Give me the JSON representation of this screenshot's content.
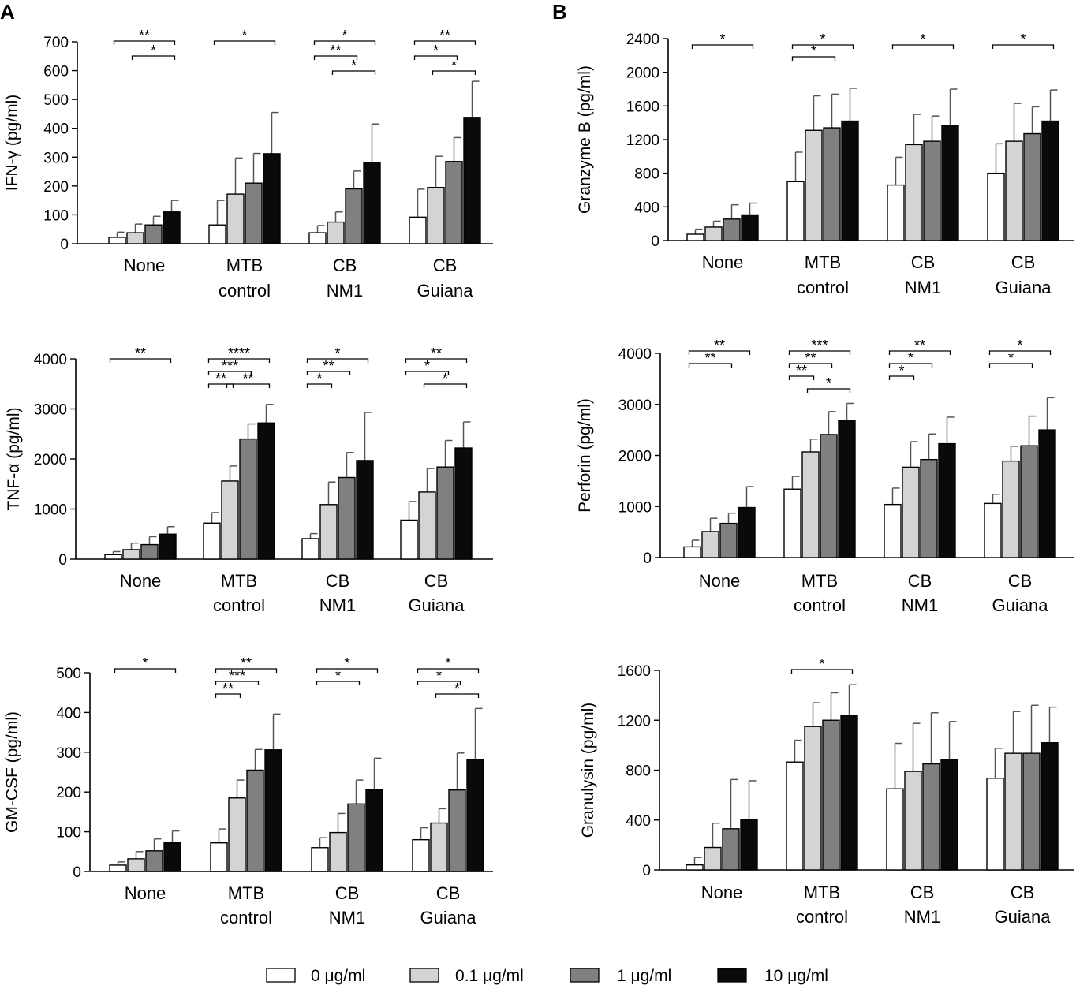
{
  "figure": {
    "panel_labels": [
      "A",
      "B"
    ],
    "legend": [
      {
        "label": "0 μg/ml",
        "color": "#ffffff"
      },
      {
        "label": "0.1 μg/ml",
        "color": "#d4d4d4"
      },
      {
        "label": "1 μg/ml",
        "color": "#808080"
      },
      {
        "label": "10 μg/ml",
        "color": "#0a0a0a"
      }
    ]
  },
  "chart_data": [
    {
      "type": "bar",
      "panel": "A",
      "ylabel": "IFN-γ (pg/ml)",
      "categories": [
        "None",
        "MTB\ncontrol",
        "CB\nNM1",
        "CB\nGuiana"
      ],
      "ylim": [
        0,
        700
      ],
      "yticks": [
        0,
        100,
        200,
        300,
        400,
        500,
        600,
        700
      ],
      "series": [
        {
          "name": "0 μg/ml",
          "values": [
            22,
            65,
            38,
            92
          ],
          "errors": [
            18,
            85,
            25,
            97
          ]
        },
        {
          "name": "0.1 μg/ml",
          "values": [
            38,
            172,
            75,
            195
          ],
          "errors": [
            30,
            125,
            35,
            108
          ]
        },
        {
          "name": "1 μg/ml",
          "values": [
            65,
            210,
            190,
            285
          ],
          "errors": [
            30,
            103,
            62,
            83
          ]
        },
        {
          "name": "10 μg/ml",
          "values": [
            110,
            312,
            282,
            438
          ],
          "errors": [
            40,
            143,
            133,
            125
          ]
        }
      ],
      "brackets": [
        {
          "group": 0,
          "from": 0,
          "to": 3,
          "level": 0,
          "label": "**"
        },
        {
          "group": 0,
          "from": 1,
          "to": 3,
          "level": 1,
          "label": "*"
        },
        {
          "group": 1,
          "from": 0,
          "to": 3,
          "level": 0,
          "label": "*"
        },
        {
          "group": 2,
          "from": 0,
          "to": 3,
          "level": 0,
          "label": "*"
        },
        {
          "group": 2,
          "from": 0,
          "to": 2,
          "level": 1,
          "label": "**"
        },
        {
          "group": 2,
          "from": 1,
          "to": 3,
          "level": 2,
          "label": "*"
        },
        {
          "group": 3,
          "from": 0,
          "to": 3,
          "level": 0,
          "label": "**"
        },
        {
          "group": 3,
          "from": 0,
          "to": 2,
          "level": 1,
          "label": "*"
        },
        {
          "group": 3,
          "from": 1,
          "to": 3,
          "level": 2,
          "label": "*"
        }
      ]
    },
    {
      "type": "bar",
      "panel": "A",
      "ylabel": "TNF-α (pg/ml)",
      "categories": [
        "None",
        "MTB\ncontrol",
        "CB\nNM1",
        "CB\nGuiana"
      ],
      "ylim": [
        0,
        4000
      ],
      "yticks": [
        0,
        1000,
        2000,
        3000,
        4000
      ],
      "series": [
        {
          "name": "0 μg/ml",
          "values": [
            90,
            720,
            410,
            780
          ],
          "errors": [
            60,
            210,
            100,
            370
          ]
        },
        {
          "name": "0.1 μg/ml",
          "values": [
            190,
            1560,
            1090,
            1340
          ],
          "errors": [
            130,
            300,
            450,
            470
          ]
        },
        {
          "name": "1 μg/ml",
          "values": [
            290,
            2400,
            1630,
            1840
          ],
          "errors": [
            160,
            300,
            500,
            530
          ]
        },
        {
          "name": "10 μg/ml",
          "values": [
            500,
            2720,
            1970,
            2220
          ],
          "errors": [
            150,
            370,
            960,
            520
          ]
        }
      ],
      "brackets": [
        {
          "group": 0,
          "from": 0,
          "to": 3,
          "level": 0,
          "label": "**"
        },
        {
          "group": 1,
          "from": 0,
          "to": 3,
          "level": 0,
          "label": "****"
        },
        {
          "group": 1,
          "from": 0,
          "to": 2,
          "level": 1,
          "label": "***"
        },
        {
          "group": 1,
          "from": 0,
          "to": 1,
          "level": 2,
          "label": "**"
        },
        {
          "group": 1,
          "from": 1,
          "to": 3,
          "level": 2,
          "label": "**"
        },
        {
          "group": 2,
          "from": 0,
          "to": 3,
          "level": 0,
          "label": "*"
        },
        {
          "group": 2,
          "from": 0,
          "to": 2,
          "level": 1,
          "label": "**"
        },
        {
          "group": 2,
          "from": 0,
          "to": 1,
          "level": 2,
          "label": "*"
        },
        {
          "group": 3,
          "from": 0,
          "to": 3,
          "level": 0,
          "label": "**"
        },
        {
          "group": 3,
          "from": 0,
          "to": 2,
          "level": 1,
          "label": "*"
        },
        {
          "group": 3,
          "from": 1,
          "to": 3,
          "level": 2,
          "label": "*"
        }
      ]
    },
    {
      "type": "bar",
      "panel": "A",
      "ylabel": "GM-CSF (pg/ml)",
      "categories": [
        "None",
        "MTB\ncontrol",
        "CB\nNM1",
        "CB\nGuiana"
      ],
      "ylim": [
        0,
        500
      ],
      "yticks": [
        0,
        100,
        200,
        300,
        400,
        500
      ],
      "series": [
        {
          "name": "0 μg/ml",
          "values": [
            16,
            72,
            60,
            80
          ],
          "errors": [
            8,
            35,
            25,
            30
          ]
        },
        {
          "name": "0.1 μg/ml",
          "values": [
            32,
            185,
            98,
            122
          ],
          "errors": [
            18,
            45,
            48,
            36
          ]
        },
        {
          "name": "1 μg/ml",
          "values": [
            52,
            255,
            170,
            205
          ],
          "errors": [
            30,
            52,
            60,
            93
          ]
        },
        {
          "name": "10 μg/ml",
          "values": [
            72,
            306,
            205,
            282
          ],
          "errors": [
            30,
            90,
            80,
            128
          ]
        }
      ],
      "brackets": [
        {
          "group": 0,
          "from": 0,
          "to": 3,
          "level": 0,
          "label": "*"
        },
        {
          "group": 1,
          "from": 0,
          "to": 3,
          "level": 0,
          "label": "**"
        },
        {
          "group": 1,
          "from": 0,
          "to": 2,
          "level": 1,
          "label": "***"
        },
        {
          "group": 1,
          "from": 0,
          "to": 1,
          "level": 2,
          "label": "**"
        },
        {
          "group": 2,
          "from": 0,
          "to": 3,
          "level": 0,
          "label": "*"
        },
        {
          "group": 2,
          "from": 0,
          "to": 2,
          "level": 1,
          "label": "*"
        },
        {
          "group": 3,
          "from": 0,
          "to": 3,
          "level": 0,
          "label": "*"
        },
        {
          "group": 3,
          "from": 0,
          "to": 2,
          "level": 1,
          "label": "*"
        },
        {
          "group": 3,
          "from": 1,
          "to": 3,
          "level": 2,
          "label": "*"
        }
      ]
    },
    {
      "type": "bar",
      "panel": "B",
      "ylabel": "Granzyme B (pg/ml)",
      "categories": [
        "None",
        "MTB\ncontrol",
        "CB\nNM1",
        "CB\nGuiana"
      ],
      "ylim": [
        0,
        2400
      ],
      "yticks": [
        0,
        400,
        800,
        1200,
        1600,
        2000,
        2400
      ],
      "series": [
        {
          "name": "0 μg/ml",
          "values": [
            75,
            700,
            660,
            800
          ],
          "errors": [
            60,
            350,
            330,
            350
          ]
        },
        {
          "name": "0.1 μg/ml",
          "values": [
            160,
            1310,
            1140,
            1180
          ],
          "errors": [
            70,
            410,
            360,
            450
          ]
        },
        {
          "name": "1 μg/ml",
          "values": [
            255,
            1340,
            1180,
            1270
          ],
          "errors": [
            170,
            400,
            300,
            320
          ]
        },
        {
          "name": "10 μg/ml",
          "values": [
            305,
            1420,
            1370,
            1420
          ],
          "errors": [
            140,
            390,
            430,
            370
          ]
        }
      ],
      "brackets": [
        {
          "group": 0,
          "from": 0,
          "to": 3,
          "level": 0,
          "label": "*"
        },
        {
          "group": 1,
          "from": 0,
          "to": 3,
          "level": 0,
          "label": "*"
        },
        {
          "group": 1,
          "from": 0,
          "to": 2,
          "level": 1,
          "label": "*"
        },
        {
          "group": 2,
          "from": 0,
          "to": 3,
          "level": 0,
          "label": "*"
        },
        {
          "group": 3,
          "from": 0,
          "to": 3,
          "level": 0,
          "label": "*"
        }
      ]
    },
    {
      "type": "bar",
      "panel": "B",
      "ylabel": "Perforin (pg/ml)",
      "categories": [
        "None",
        "MTB\ncontrol",
        "CB\nNM1",
        "CB\nGuiana"
      ],
      "ylim": [
        0,
        4000
      ],
      "yticks": [
        0,
        1000,
        2000,
        3000,
        4000
      ],
      "series": [
        {
          "name": "0 μg/ml",
          "values": [
            210,
            1340,
            1040,
            1060
          ],
          "errors": [
            130,
            250,
            320,
            180
          ]
        },
        {
          "name": "0.1 μg/ml",
          "values": [
            510,
            2070,
            1770,
            1890
          ],
          "errors": [
            260,
            250,
            500,
            290
          ]
        },
        {
          "name": "1 μg/ml",
          "values": [
            670,
            2410,
            1920,
            2190
          ],
          "errors": [
            200,
            450,
            500,
            580
          ]
        },
        {
          "name": "10 μg/ml",
          "values": [
            980,
            2690,
            2230,
            2500
          ],
          "errors": [
            410,
            330,
            520,
            630
          ]
        }
      ],
      "brackets": [
        {
          "group": 0,
          "from": 0,
          "to": 3,
          "level": 0,
          "label": "**"
        },
        {
          "group": 0,
          "from": 0,
          "to": 2,
          "level": 1,
          "label": "**"
        },
        {
          "group": 1,
          "from": 0,
          "to": 3,
          "level": 0,
          "label": "***"
        },
        {
          "group": 1,
          "from": 0,
          "to": 2,
          "level": 1,
          "label": "**"
        },
        {
          "group": 1,
          "from": 0,
          "to": 1,
          "level": 2,
          "label": "**"
        },
        {
          "group": 1,
          "from": 1,
          "to": 3,
          "level": 3,
          "label": "*"
        },
        {
          "group": 2,
          "from": 0,
          "to": 3,
          "level": 0,
          "label": "**"
        },
        {
          "group": 2,
          "from": 0,
          "to": 2,
          "level": 1,
          "label": "*"
        },
        {
          "group": 2,
          "from": 0,
          "to": 1,
          "level": 2,
          "label": "*"
        },
        {
          "group": 3,
          "from": 0,
          "to": 3,
          "level": 0,
          "label": "*"
        },
        {
          "group": 3,
          "from": 0,
          "to": 2,
          "level": 1,
          "label": "*"
        }
      ]
    },
    {
      "type": "bar",
      "panel": "B",
      "ylabel": "Granulysin (pg/ml)",
      "categories": [
        "None",
        "MTB\ncontrol",
        "CB\nNM1",
        "CB\nGuiana"
      ],
      "ylim": [
        0,
        1600
      ],
      "yticks": [
        0,
        400,
        800,
        1200,
        1600
      ],
      "series": [
        {
          "name": "0 μg/ml",
          "values": [
            40,
            865,
            650,
            735
          ],
          "errors": [
            60,
            175,
            365,
            240
          ]
        },
        {
          "name": "0.1 μg/ml",
          "values": [
            180,
            1150,
            790,
            935
          ],
          "errors": [
            195,
            190,
            385,
            335
          ]
        },
        {
          "name": "1 μg/ml",
          "values": [
            330,
            1200,
            850,
            935
          ],
          "errors": [
            395,
            220,
            410,
            385
          ]
        },
        {
          "name": "10 μg/ml",
          "values": [
            405,
            1240,
            885,
            1020
          ],
          "errors": [
            310,
            245,
            305,
            285
          ]
        }
      ],
      "brackets": [
        {
          "group": 1,
          "from": 0,
          "to": 3,
          "level": 0,
          "label": "*"
        }
      ]
    }
  ]
}
